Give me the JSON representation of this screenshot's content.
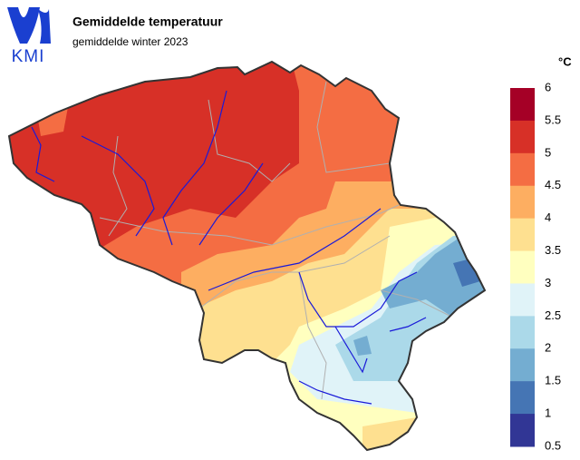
{
  "header": {
    "logo": "KMI",
    "title": "Gemiddelde temperatuur",
    "subtitle": "gemiddelde winter 2023"
  },
  "legend": {
    "unit": "°C",
    "ticks": [
      6,
      5.5,
      5,
      4.5,
      4,
      3.5,
      3,
      2.5,
      2,
      1.5,
      1,
      0.5
    ],
    "colors": [
      "#a50026",
      "#d73027",
      "#f46d43",
      "#fdae61",
      "#fee090",
      "#ffffbf",
      "#e0f3f8",
      "#abd9e9",
      "#74add1",
      "#4575b4",
      "#313695"
    ]
  }
}
